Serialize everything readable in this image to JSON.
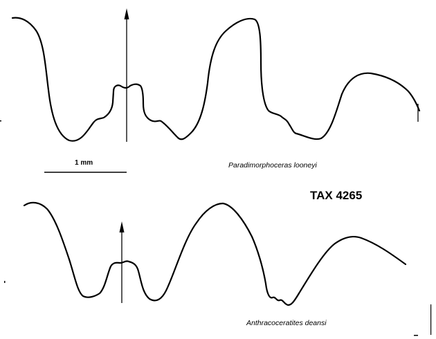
{
  "figure": {
    "scale_bar_label": "1 mm",
    "specimen_code": "TAX 4265",
    "sutures": [
      {
        "species": "Paradimorphoceras looneyi"
      },
      {
        "species": "Anthracoceratites deansi"
      }
    ]
  }
}
